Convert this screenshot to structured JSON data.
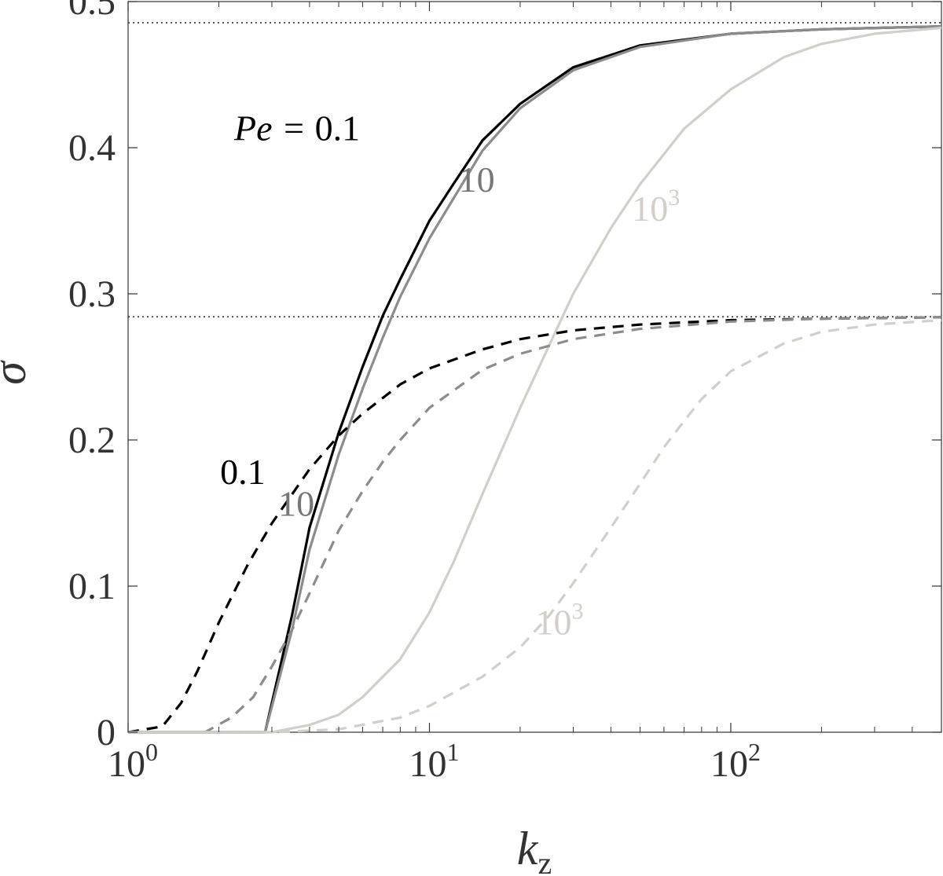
{
  "chart_data": {
    "type": "line",
    "x_scale": "log",
    "xlim": [
      1,
      500
    ],
    "ylim": [
      0,
      0.5
    ],
    "xlabel": {
      "base": "k",
      "sub": "z"
    },
    "ylabel": "σ",
    "grid": false,
    "xticks": [
      {
        "value": 1,
        "base": "10",
        "exp": "0"
      },
      {
        "value": 10,
        "base": "10",
        "exp": "1"
      },
      {
        "value": 100,
        "base": "10",
        "exp": "2"
      }
    ],
    "yticks": [
      {
        "value": 0,
        "label": "0"
      },
      {
        "value": 0.1,
        "label": "0.1"
      },
      {
        "value": 0.2,
        "label": "0.2"
      },
      {
        "value": 0.3,
        "label": "0.3"
      },
      {
        "value": 0.4,
        "label": "0.4"
      },
      {
        "value": 0.5,
        "label": "0.5"
      }
    ],
    "reference_lines": [
      {
        "y": 0.4855,
        "style": "dotted"
      },
      {
        "y": 0.2843,
        "style": "dotted"
      }
    ],
    "series": [
      {
        "style": "solid",
        "color": "#000000",
        "x": [
          1,
          2.85,
          3.5,
          4,
          5,
          6,
          7,
          8,
          10,
          12,
          15,
          20,
          30,
          50,
          100,
          200,
          500
        ],
        "y": [
          0,
          0,
          0.08,
          0.14,
          0.205,
          0.25,
          0.285,
          0.31,
          0.35,
          0.375,
          0.405,
          0.43,
          0.455,
          0.47,
          0.478,
          0.481,
          0.483
        ]
      },
      {
        "style": "solid",
        "color": "#8c8c8c",
        "x": [
          1,
          2.85,
          3.5,
          4,
          5,
          6,
          7,
          8,
          10,
          12,
          15,
          20,
          30,
          50,
          100,
          200,
          500
        ],
        "y": [
          0,
          0,
          0.07,
          0.125,
          0.19,
          0.235,
          0.27,
          0.298,
          0.338,
          0.365,
          0.398,
          0.427,
          0.453,
          0.469,
          0.478,
          0.481,
          0.483
        ]
      },
      {
        "style": "solid",
        "color": "#d2cfc9",
        "x": [
          1,
          3,
          4,
          5,
          6,
          8,
          10,
          12,
          15,
          20,
          25,
          30,
          40,
          50,
          70,
          100,
          150,
          200,
          300,
          500
        ],
        "y": [
          0,
          0,
          0.005,
          0.012,
          0.024,
          0.05,
          0.082,
          0.116,
          0.163,
          0.222,
          0.265,
          0.3,
          0.345,
          0.375,
          0.413,
          0.44,
          0.462,
          0.471,
          0.478,
          0.482
        ]
      },
      {
        "style": "dashed",
        "color": "#000000",
        "x": [
          1,
          1.3,
          1.5,
          1.7,
          2,
          2.5,
          3,
          4,
          5,
          6,
          8,
          10,
          15,
          20,
          30,
          50,
          100,
          200,
          500
        ],
        "y": [
          0,
          0.004,
          0.02,
          0.042,
          0.075,
          0.115,
          0.143,
          0.18,
          0.203,
          0.218,
          0.238,
          0.249,
          0.262,
          0.269,
          0.275,
          0.279,
          0.282,
          0.283,
          0.284
        ]
      },
      {
        "style": "dashed",
        "color": "#8c8c8c",
        "x": [
          1,
          1.8,
          2.2,
          2.6,
          3,
          3.5,
          4,
          5,
          6,
          7,
          8,
          10,
          15,
          20,
          30,
          50,
          100,
          200,
          500
        ],
        "y": [
          0,
          0,
          0.01,
          0.024,
          0.045,
          0.07,
          0.095,
          0.138,
          0.165,
          0.185,
          0.2,
          0.222,
          0.248,
          0.259,
          0.269,
          0.276,
          0.281,
          0.283,
          0.284
        ]
      },
      {
        "style": "dashed",
        "color": "#d2cfc9",
        "x": [
          1,
          3,
          5,
          8,
          10,
          15,
          20,
          25,
          30,
          40,
          50,
          60,
          70,
          80,
          100,
          150,
          200,
          300,
          500
        ],
        "y": [
          0,
          0,
          0.002,
          0.01,
          0.018,
          0.038,
          0.058,
          0.08,
          0.102,
          0.14,
          0.17,
          0.195,
          0.213,
          0.228,
          0.247,
          0.266,
          0.274,
          0.279,
          0.282
        ]
      }
    ],
    "annotations": [
      {
        "text": "0.1",
        "math_prefix": "Pe = ",
        "color": "#000000",
        "x": 2.25,
        "y": 0.405
      },
      {
        "text": "10",
        "color": "#777777",
        "x": 12.5,
        "y": 0.37
      },
      {
        "text": "10",
        "exp": "3",
        "color": "#d2cfc9",
        "x": 47,
        "y": 0.35
      },
      {
        "text": "0.1",
        "color": "#000000",
        "x": 2.02,
        "y": 0.17
      },
      {
        "text": "10",
        "color": "#777777",
        "x": 3.15,
        "y": 0.148
      },
      {
        "text": "10",
        "exp": "3",
        "color": "#d2cfc9",
        "x": 22.5,
        "y": 0.067
      }
    ]
  }
}
